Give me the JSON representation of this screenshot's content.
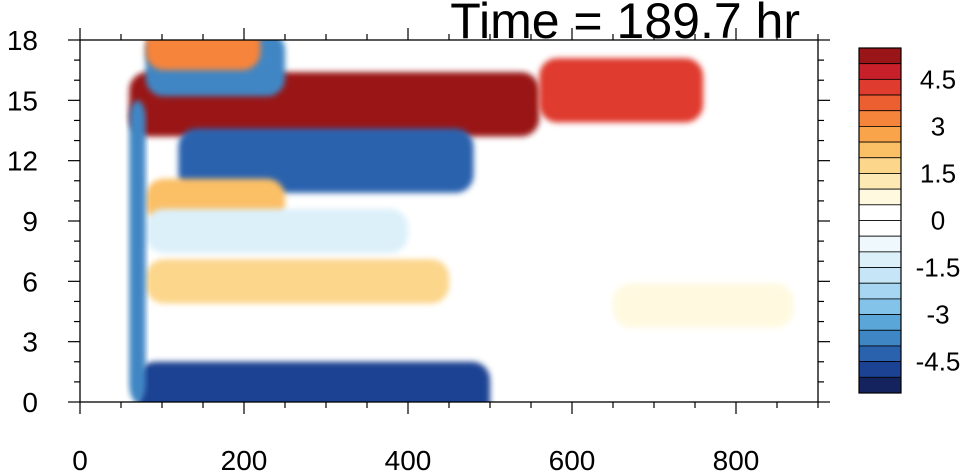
{
  "chart_data": {
    "type": "heatmap",
    "title": "Time = 189.7 hr",
    "xlabel": "",
    "ylabel": "",
    "xlim": [
      0,
      900
    ],
    "ylim": [
      0,
      18
    ],
    "x_ticks": [
      0,
      200,
      400,
      600,
      800
    ],
    "y_ticks": [
      0,
      3,
      6,
      9,
      12,
      15,
      18
    ],
    "grid": false,
    "colorbar": {
      "placement": "right",
      "levels": [
        -5.5,
        -5,
        -4.5,
        -4,
        -3.5,
        -3,
        -2.5,
        -2,
        -1.5,
        -1,
        -0.5,
        0,
        0.5,
        1,
        1.5,
        2,
        2.5,
        3,
        3.5,
        4,
        4.5,
        5,
        5.5
      ],
      "labels": [
        "4.5",
        "3",
        "1.5",
        "0",
        "-1.5",
        "-3",
        "-4.5"
      ],
      "label_values": [
        4.5,
        3,
        1.5,
        0,
        -1.5,
        -3,
        -4.5
      ],
      "colors": [
        "#14235e",
        "#1c4393",
        "#2a62ae",
        "#3f86c4",
        "#5aa6d8",
        "#83c3ea",
        "#a6d6f1",
        "#c6e5f6",
        "#dcf0fa",
        "#eef8fd",
        "#ffffff",
        "#ffffff",
        "#fff9e0",
        "#fde9b4",
        "#fcd68b",
        "#fbbf66",
        "#f9a34b",
        "#f6843b",
        "#ec5f31",
        "#df3b2e",
        "#c8202a",
        "#9a1517"
      ]
    },
    "features": [
      {
        "name": "upper positive band",
        "x": [
          60,
          560
        ],
        "y_center": 14.8,
        "value": 5.5
      },
      {
        "name": "upper positive tail",
        "x": [
          560,
          760
        ],
        "y_center": 15.5,
        "value": 4.0
      },
      {
        "name": "upper negative band",
        "x": [
          120,
          480
        ],
        "y_center": 12.0,
        "value": -4.5
      },
      {
        "name": "top negative strip",
        "x": [
          80,
          250
        ],
        "y_center": 16.8,
        "value": -4.0
      },
      {
        "name": "top positive strip",
        "x": [
          80,
          220
        ],
        "y_center": 17.6,
        "value": 3.0
      },
      {
        "name": "mid positive band",
        "x": [
          80,
          250
        ],
        "y_center": 10.0,
        "value": 2.0
      },
      {
        "name": "mid negative band",
        "x": [
          80,
          400
        ],
        "y_center": 8.5,
        "value": -1.5
      },
      {
        "name": "lower positive patch",
        "x": [
          80,
          450
        ],
        "y_center": 6.0,
        "value": 1.5
      },
      {
        "name": "right positive patch",
        "x": [
          650,
          870
        ],
        "y_center": 4.8,
        "value": 0.5
      },
      {
        "name": "bottom negative band",
        "x": [
          70,
          500
        ],
        "y_center": 0.4,
        "value": -5.0
      },
      {
        "name": "vertical negative streak",
        "x": [
          60,
          80
        ],
        "y_range": [
          0,
          15
        ],
        "value": -4.0
      }
    ]
  }
}
